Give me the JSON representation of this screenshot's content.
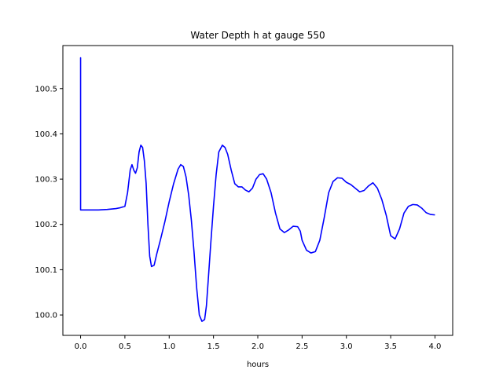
{
  "chart_data": {
    "type": "line",
    "title": "Water Depth h at gauge 550",
    "xlabel": "hours",
    "ylabel": "",
    "xlim": [
      -0.2,
      4.2
    ],
    "ylim": [
      99.955,
      100.595
    ],
    "xticks": [
      0.0,
      0.5,
      1.0,
      1.5,
      2.0,
      2.5,
      3.0,
      3.5,
      4.0
    ],
    "xtick_labels": [
      "0.0",
      "0.5",
      "1.0",
      "1.5",
      "2.0",
      "2.5",
      "3.0",
      "3.5",
      "4.0"
    ],
    "yticks": [
      100.0,
      100.1,
      100.2,
      100.3,
      100.4,
      100.5
    ],
    "ytick_labels": [
      "100.0",
      "100.1",
      "100.2",
      "100.3",
      "100.4",
      "100.5"
    ],
    "grid": false,
    "series": [
      {
        "color": "#0000ff",
        "x": [
          0.0,
          0.0,
          0.0,
          0.1,
          0.2,
          0.3,
          0.4,
          0.45,
          0.5,
          0.53,
          0.56,
          0.58,
          0.6,
          0.62,
          0.64,
          0.66,
          0.68,
          0.7,
          0.72,
          0.74,
          0.76,
          0.78,
          0.8,
          0.83,
          0.86,
          0.9,
          0.95,
          1.0,
          1.05,
          1.1,
          1.13,
          1.16,
          1.19,
          1.22,
          1.25,
          1.28,
          1.31,
          1.34,
          1.37,
          1.4,
          1.42,
          1.44,
          1.47,
          1.5,
          1.53,
          1.56,
          1.6,
          1.63,
          1.66,
          1.7,
          1.74,
          1.78,
          1.82,
          1.86,
          1.9,
          1.94,
          1.98,
          2.02,
          2.06,
          2.1,
          2.15,
          2.2,
          2.25,
          2.3,
          2.35,
          2.4,
          2.45,
          2.48,
          2.5,
          2.55,
          2.6,
          2.65,
          2.7,
          2.75,
          2.8,
          2.85,
          2.9,
          2.95,
          3.0,
          3.05,
          3.1,
          3.15,
          3.2,
          3.25,
          3.3,
          3.35,
          3.4,
          3.45,
          3.5,
          3.55,
          3.6,
          3.65,
          3.7,
          3.75,
          3.8,
          3.85,
          3.9,
          3.95,
          4.0
        ],
        "y": [
          100.232,
          100.568,
          100.232,
          100.232,
          100.232,
          100.233,
          100.235,
          100.237,
          100.24,
          100.27,
          100.32,
          100.332,
          100.32,
          100.313,
          100.325,
          100.36,
          100.375,
          100.37,
          100.34,
          100.29,
          100.2,
          100.13,
          100.107,
          100.11,
          100.135,
          100.165,
          100.205,
          100.25,
          100.29,
          100.322,
          100.332,
          100.328,
          100.305,
          100.265,
          100.21,
          100.14,
          100.06,
          100.0,
          99.986,
          99.99,
          100.02,
          100.075,
          100.16,
          100.24,
          100.31,
          100.36,
          100.375,
          100.37,
          100.355,
          100.32,
          100.29,
          100.283,
          100.283,
          100.276,
          100.272,
          100.28,
          100.3,
          100.31,
          100.312,
          100.3,
          100.27,
          100.225,
          100.19,
          100.182,
          100.188,
          100.196,
          100.195,
          100.185,
          100.165,
          100.143,
          100.137,
          100.14,
          100.165,
          100.215,
          100.27,
          100.295,
          100.303,
          100.302,
          100.293,
          100.288,
          100.28,
          100.272,
          100.275,
          100.285,
          100.292,
          100.28,
          100.255,
          100.22,
          100.175,
          100.168,
          100.19,
          100.225,
          100.24,
          100.244,
          100.243,
          100.236,
          100.226,
          100.222,
          100.221
        ]
      }
    ]
  }
}
